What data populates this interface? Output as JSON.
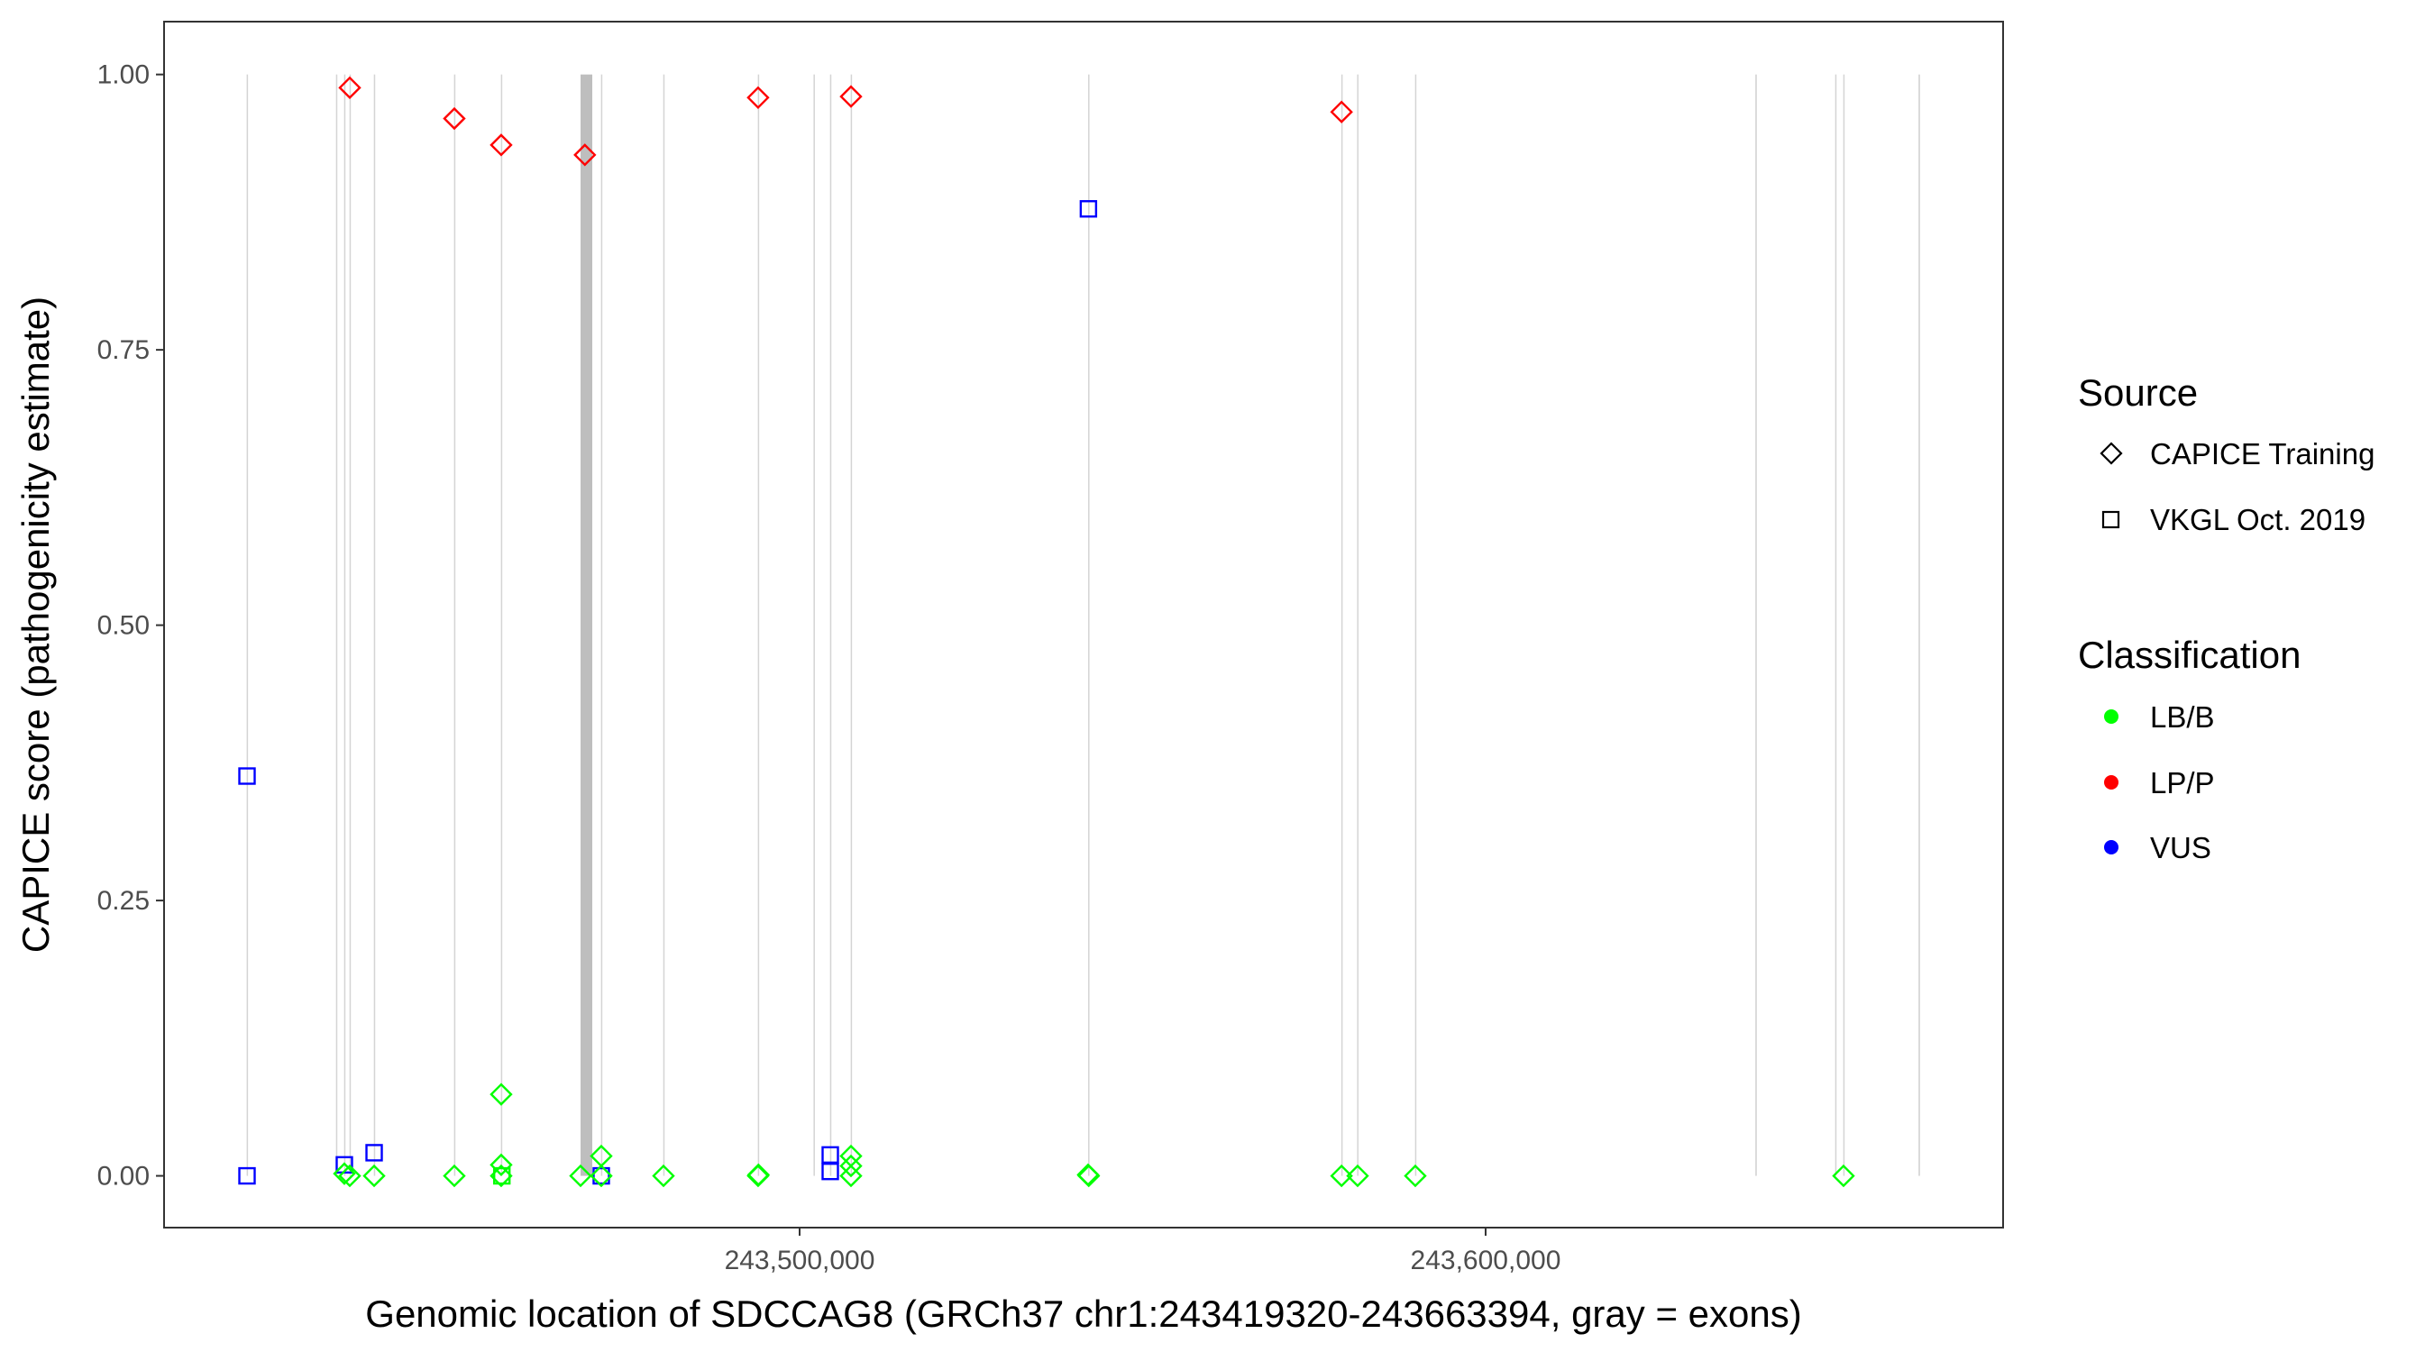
{
  "chart_data": {
    "type": "scatter",
    "xlabel": "Genomic location of SDCCAG8 (GRCh37 chr1:243419320-243663394, gray = exons)",
    "ylabel": "CAPICE score (pathogenicity estimate)",
    "xlim": [
      243407360,
      243675430
    ],
    "ylim": [
      -0.047,
      1.048
    ],
    "x_ticks": [
      243500000,
      243600000
    ],
    "x_tick_labels": [
      "243,500,000",
      "243,600,000"
    ],
    "y_ticks": [
      0,
      0.25,
      0.5,
      0.75,
      1.0
    ],
    "y_tick_labels": [
      "0.00",
      "0.25",
      "0.50",
      "0.75",
      "1.00"
    ],
    "grid": false,
    "legend_placement": "right",
    "legend": {
      "source_title": "Source",
      "source_items": [
        {
          "label": "CAPICE Training",
          "shape": "diamond"
        },
        {
          "label": "VKGL Oct. 2019",
          "shape": "square"
        }
      ],
      "class_title": "Classification",
      "class_items": [
        {
          "label": "LB/B",
          "color": "#00ff00"
        },
        {
          "label": "LP/P",
          "color": "#ff0000"
        },
        {
          "label": "VUS",
          "color": "#0000ff"
        }
      ]
    },
    "colors": {
      "LB/B": "#00ff00",
      "LP/P": "#ff0000",
      "VUS": "#0000ff",
      "exon": "#bebebe"
    },
    "exons": [
      [
        243419400,
        243419500
      ],
      [
        243432420,
        243432500
      ],
      [
        243433600,
        243433680
      ],
      [
        243434390,
        243434470
      ],
      [
        243437940,
        243438020
      ],
      [
        243449630,
        243449710
      ],
      [
        243456460,
        243456540
      ],
      [
        243468070,
        243469780
      ],
      [
        243471050,
        243471130
      ],
      [
        243480120,
        243480200
      ],
      [
        243493910,
        243493990
      ],
      [
        243502030,
        243502170
      ],
      [
        243504430,
        243504510
      ],
      [
        243507450,
        243507530
      ],
      [
        243542060,
        243542140
      ],
      [
        243578960,
        243579040
      ],
      [
        243581270,
        243581410
      ],
      [
        243589710,
        243589790
      ],
      [
        243639310,
        243639530
      ],
      [
        243650950,
        243651030
      ],
      [
        243652130,
        243652210
      ],
      [
        243663100,
        243663320
      ]
    ],
    "points": [
      {
        "x": 243434430,
        "y": 0.988,
        "class": "LP/P",
        "source": "CAPICE Training"
      },
      {
        "x": 243449670,
        "y": 0.96,
        "class": "LP/P",
        "source": "CAPICE Training"
      },
      {
        "x": 243456500,
        "y": 0.936,
        "class": "LP/P",
        "source": "CAPICE Training"
      },
      {
        "x": 243468700,
        "y": 0.927,
        "class": "LP/P",
        "source": "CAPICE Training"
      },
      {
        "x": 243493950,
        "y": 0.979,
        "class": "LP/P",
        "source": "CAPICE Training"
      },
      {
        "x": 243507490,
        "y": 0.98,
        "class": "LP/P",
        "source": "CAPICE Training"
      },
      {
        "x": 243579000,
        "y": 0.966,
        "class": "LP/P",
        "source": "CAPICE Training"
      },
      {
        "x": 243419450,
        "y": 0.363,
        "class": "VUS",
        "source": "VKGL Oct. 2019"
      },
      {
        "x": 243419450,
        "y": 0.0,
        "class": "VUS",
        "source": "VKGL Oct. 2019"
      },
      {
        "x": 243433640,
        "y": 0.01,
        "class": "VUS",
        "source": "VKGL Oct. 2019"
      },
      {
        "x": 243437980,
        "y": 0.021,
        "class": "VUS",
        "source": "VKGL Oct. 2019"
      },
      {
        "x": 243471090,
        "y": 0.0,
        "class": "VUS",
        "source": "VKGL Oct. 2019"
      },
      {
        "x": 243504470,
        "y": 0.019,
        "class": "VUS",
        "source": "VKGL Oct. 2019"
      },
      {
        "x": 243504470,
        "y": 0.004,
        "class": "VUS",
        "source": "VKGL Oct. 2019"
      },
      {
        "x": 243542100,
        "y": 0.878,
        "class": "VUS",
        "source": "VKGL Oct. 2019"
      },
      {
        "x": 243433640,
        "y": 0.002,
        "class": "LB/B",
        "source": "CAPICE Training"
      },
      {
        "x": 243434430,
        "y": 0.0,
        "class": "LB/B",
        "source": "CAPICE Training"
      },
      {
        "x": 243437980,
        "y": 0.0,
        "class": "LB/B",
        "source": "CAPICE Training"
      },
      {
        "x": 243449670,
        "y": 0.0,
        "class": "LB/B",
        "source": "CAPICE Training"
      },
      {
        "x": 243456500,
        "y": 0.074,
        "class": "LB/B",
        "source": "CAPICE Training"
      },
      {
        "x": 243456500,
        "y": 0.01,
        "class": "LB/B",
        "source": "CAPICE Training"
      },
      {
        "x": 243456500,
        "y": 0.0,
        "class": "LB/B",
        "source": "CAPICE Training"
      },
      {
        "x": 243456600,
        "y": 0.0,
        "class": "LB/B",
        "source": "VKGL Oct. 2019"
      },
      {
        "x": 243468070,
        "y": 0.0,
        "class": "LB/B",
        "source": "CAPICE Training"
      },
      {
        "x": 243471090,
        "y": 0.018,
        "class": "LB/B",
        "source": "CAPICE Training"
      },
      {
        "x": 243471090,
        "y": 0.0,
        "class": "LB/B",
        "source": "CAPICE Training"
      },
      {
        "x": 243480160,
        "y": 0.0,
        "class": "LB/B",
        "source": "CAPICE Training"
      },
      {
        "x": 243493950,
        "y": 0.0,
        "class": "LB/B",
        "source": "CAPICE Training"
      },
      {
        "x": 243494000,
        "y": 0.001,
        "class": "LB/B",
        "source": "CAPICE Training"
      },
      {
        "x": 243507490,
        "y": 0.018,
        "class": "LB/B",
        "source": "CAPICE Training"
      },
      {
        "x": 243507490,
        "y": 0.009,
        "class": "LB/B",
        "source": "CAPICE Training"
      },
      {
        "x": 243507490,
        "y": 0.0,
        "class": "LB/B",
        "source": "CAPICE Training"
      },
      {
        "x": 243542050,
        "y": 0.001,
        "class": "LB/B",
        "source": "CAPICE Training"
      },
      {
        "x": 243542150,
        "y": 0.0,
        "class": "LB/B",
        "source": "CAPICE Training"
      },
      {
        "x": 243579000,
        "y": 0.0,
        "class": "LB/B",
        "source": "CAPICE Training"
      },
      {
        "x": 243581340,
        "y": 0.0,
        "class": "LB/B",
        "source": "CAPICE Training"
      },
      {
        "x": 243589750,
        "y": 0.0,
        "class": "LB/B",
        "source": "CAPICE Training"
      },
      {
        "x": 243652170,
        "y": 0.0,
        "class": "LB/B",
        "source": "CAPICE Training"
      }
    ]
  }
}
